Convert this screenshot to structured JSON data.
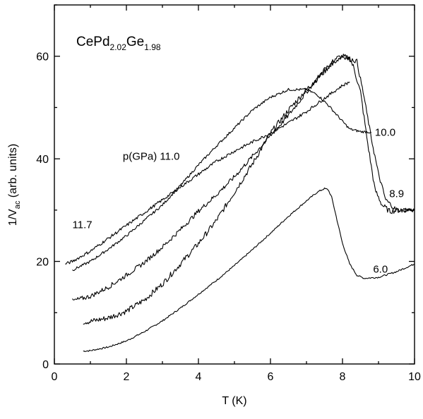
{
  "chart_data": {
    "type": "line",
    "title": {
      "main_1": "CePd",
      "sub_1": "2.02",
      "main_2": "Ge",
      "sub_2": "1.98"
    },
    "xlabel": "T (K)",
    "ylabel": {
      "main": "1/V",
      "sub": "ac",
      "rest": " (arb. units)"
    },
    "xlim": [
      0,
      10
    ],
    "ylim": [
      0,
      70
    ],
    "x_ticks": [
      "0",
      "2",
      "4",
      "6",
      "8",
      "10"
    ],
    "y_ticks": [
      "0",
      "20",
      "40",
      "60"
    ],
    "grid": false,
    "pressure_label": "p(GPa)",
    "series": [
      {
        "name": "6.0",
        "noise": 0.15,
        "x": [
          0.8,
          1.0,
          1.5,
          2.0,
          2.5,
          3.0,
          3.5,
          4.0,
          4.5,
          5.0,
          5.5,
          6.0,
          6.5,
          7.0,
          7.3,
          7.5,
          7.6,
          7.7,
          7.8,
          8.0,
          8.2,
          8.4,
          8.6,
          9.0,
          9.5,
          10.0
        ],
        "y": [
          2.5,
          2.6,
          3.3,
          4.5,
          6.3,
          8.4,
          10.9,
          13.6,
          16.3,
          19.2,
          22.3,
          25.5,
          28.8,
          31.8,
          33.5,
          34.2,
          34.0,
          32.5,
          29.5,
          23.5,
          19.5,
          17.3,
          16.7,
          16.9,
          18.0,
          19.5
        ]
      },
      {
        "name": "8.9",
        "noise": 0.55,
        "x": [
          0.8,
          1.0,
          1.5,
          2.0,
          2.5,
          3.0,
          3.5,
          4.0,
          4.5,
          5.0,
          5.5,
          6.0,
          6.5,
          7.0,
          7.5,
          7.8,
          8.0,
          8.2,
          8.3,
          8.5,
          8.7,
          8.9,
          9.1,
          9.3,
          9.6,
          10.0
        ],
        "y": [
          8.2,
          8.3,
          9.0,
          10.3,
          12.5,
          15.6,
          19.5,
          23.5,
          28.0,
          33.5,
          39.0,
          45.0,
          49.5,
          53.5,
          57.0,
          59.5,
          60.0,
          59.5,
          58.0,
          53.0,
          43.0,
          34.0,
          31.0,
          29.8,
          30.0,
          30.2
        ]
      },
      {
        "name": "10.0",
        "noise": 0.25,
        "x": [
          0.5,
          1.0,
          1.5,
          2.0,
          2.5,
          3.0,
          3.5,
          4.0,
          4.5,
          5.0,
          5.5,
          6.0,
          6.5,
          7.0,
          7.3,
          7.6,
          8.0,
          8.2,
          8.5,
          8.8
        ],
        "y": [
          18.3,
          20.0,
          22.4,
          25.0,
          28.0,
          31.0,
          34.8,
          38.8,
          42.5,
          46.0,
          49.5,
          52.0,
          53.5,
          53.5,
          52.5,
          50.5,
          47.3,
          45.8,
          45.3,
          45.2
        ]
      },
      {
        "name": "11.0",
        "noise": 0.45,
        "x": [
          0.5,
          1.0,
          1.5,
          2.0,
          2.5,
          3.0,
          3.5,
          4.0,
          4.5,
          5.0,
          5.5,
          6.0,
          6.5,
          7.0,
          7.5,
          8.0,
          8.4,
          8.6,
          8.8,
          9.0,
          9.2,
          9.5,
          10.0
        ],
        "y": [
          12.3,
          13.2,
          15.0,
          17.3,
          19.8,
          22.8,
          26.2,
          29.8,
          33.0,
          36.5,
          40.5,
          44.5,
          48.5,
          53.0,
          57.5,
          60.0,
          59.0,
          52.0,
          44.0,
          37.0,
          32.0,
          30.0,
          30.0
        ]
      },
      {
        "name": "11.7",
        "noise": 0.3,
        "x": [
          0.3,
          0.5,
          1.0,
          1.5,
          2.0,
          2.5,
          3.0,
          3.5,
          4.0,
          4.5,
          5.0,
          5.5,
          6.0,
          6.5,
          7.0,
          7.5,
          8.0,
          8.2
        ],
        "y": [
          19.5,
          20.0,
          22.0,
          24.5,
          27.0,
          29.5,
          32.0,
          34.5,
          37.0,
          39.5,
          41.5,
          43.3,
          45.0,
          47.0,
          49.2,
          51.8,
          54.3,
          55.0
        ]
      }
    ],
    "annotations": [
      {
        "text": "11.7",
        "x": 0.5,
        "y": 26.5
      },
      {
        "text": "p(GPa)  11.0",
        "x": 1.9,
        "y": 39.8
      },
      {
        "text": "10.0",
        "x": 8.9,
        "y": 44.5
      },
      {
        "text": "8.9",
        "x": 9.3,
        "y": 32.5
      },
      {
        "text": "6.0",
        "x": 8.85,
        "y": 17.8
      }
    ]
  }
}
